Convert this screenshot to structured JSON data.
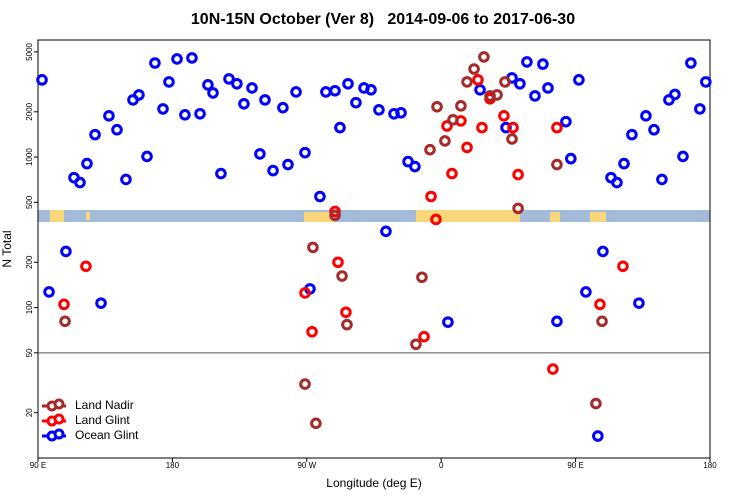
{
  "chart_data": {
    "type": "scatter",
    "title": "10N-15N October (Ver 8)   2014-09-06 to 2017-06-30",
    "x_label": "Longitude (deg E)",
    "y_label": "N Total",
    "xlim": [
      90,
      540
    ],
    "xticks": [
      {
        "value": 90,
        "label": "90 E"
      },
      180,
      {
        "value": 270,
        "label": "90 W"
      },
      {
        "value": 360,
        "label": "0"
      },
      {
        "value": 450,
        "label": "90 E"
      },
      {
        "value": 540,
        "label": "180"
      }
    ],
    "ylim": [
      10,
      6000
    ],
    "yticks": [
      20,
      50,
      100,
      200,
      500,
      1000,
      2000,
      5000
    ],
    "log_y": true,
    "reference_line": 50,
    "legend": "lower left",
    "series": [
      {
        "name": "Land Nadir",
        "color": "#a52a2a",
        "x": [
          108.1,
          274.1,
          268.8,
          276.1,
          288.9,
          293.6,
          296.9,
          343.1,
          347.1,
          352.5,
          357.2,
          362.5,
          367.9,
          373.2,
          377.3,
          382.0,
          388.6,
          392.7,
          397.4,
          402.7,
          407.4,
          411.5,
          437.5,
          463.6,
          467.7
        ],
        "values": [
          81,
          251,
          31,
          17,
          410,
          162,
          77,
          57,
          159,
          1120,
          2160,
          1280,
          1770,
          2190,
          3160,
          3850,
          4630,
          2550,
          2590,
          3160,
          1320,
          456,
          892,
          23,
          81
        ]
      },
      {
        "name": "Land Glint",
        "color": "#ff0000",
        "x": [
          107.4,
          122.1,
          268.8,
          273.5,
          288.9,
          290.9,
          296.2,
          353.2,
          356.5,
          348.5,
          363.9,
          367.2,
          373.2,
          377.3,
          384.6,
          387.3,
          392.7,
          402.0,
          408.1,
          411.5,
          437.5,
          434.8,
          466.3,
          481.7
        ],
        "values": [
          105,
          188,
          125,
          69,
          435,
          200,
          93,
          547,
          385,
          64,
          1610,
          777,
          1740,
          1160,
          3260,
          1570,
          2440,
          1880,
          1570,
          765,
          1570,
          39,
          105,
          188
        ]
      },
      {
        "name": "Ocean Glint",
        "color": "#0000ff",
        "x": [
          92.7,
          108.7,
          97.4,
          114.1,
          118.1,
          122.8,
          128.2,
          132.2,
          137.5,
          142.9,
          148.9,
          153.6,
          157.6,
          163.0,
          168.3,
          173.7,
          177.7,
          183.1,
          188.4,
          193.1,
          198.5,
          203.8,
          207.2,
          212.5,
          217.9,
          223.2,
          227.9,
          233.3,
          238.6,
          242.0,
          247.4,
          254.0,
          257.4,
          262.8,
          268.8,
          272.1,
          278.8,
          282.8,
          288.9,
          292.2,
          297.6,
          302.9,
          308.3,
          313.0,
          318.3,
          323.0,
          328.4,
          333.1,
          337.8,
          342.4,
          364.5,
          386.0,
          403.4,
          407.4,
          412.7,
          417.4,
          422.8,
          428.1,
          431.5,
          437.5,
          443.5,
          446.8,
          452.2,
          456.9,
          464.9,
          468.3,
          473.7,
          477.7,
          482.4,
          487.7,
          492.4,
          497.1,
          502.5,
          507.8,
          512.5,
          516.5,
          521.9,
          527.2,
          533.2,
          537.2
        ],
        "values": [
          3260,
          236,
          127,
          730,
          677,
          905,
          1410,
          107,
          1880,
          1520,
          710,
          2400,
          2590,
          1010,
          4220,
          2090,
          3160,
          4490,
          1910,
          4560,
          1940,
          3020,
          2670,
          777,
          3310,
          3070,
          2260,
          2880,
          1050,
          2400,
          813,
          2130,
          892,
          2710,
          1070,
          133,
          547,
          2710,
          2760,
          1570,
          3070,
          2300,
          2880,
          2800,
          2060,
          321,
          1940,
          1970,
          933,
          865,
          80,
          2800,
          1570,
          3360,
          3070,
          4290,
          2550,
          4150,
          2880,
          81,
          1720,
          977,
          3260,
          127,
          14,
          236,
          730,
          677,
          905,
          1410,
          107,
          1880,
          1520,
          710,
          2400,
          2610,
          1010,
          4220,
          2090,
          3160
        ]
      }
    ]
  }
}
